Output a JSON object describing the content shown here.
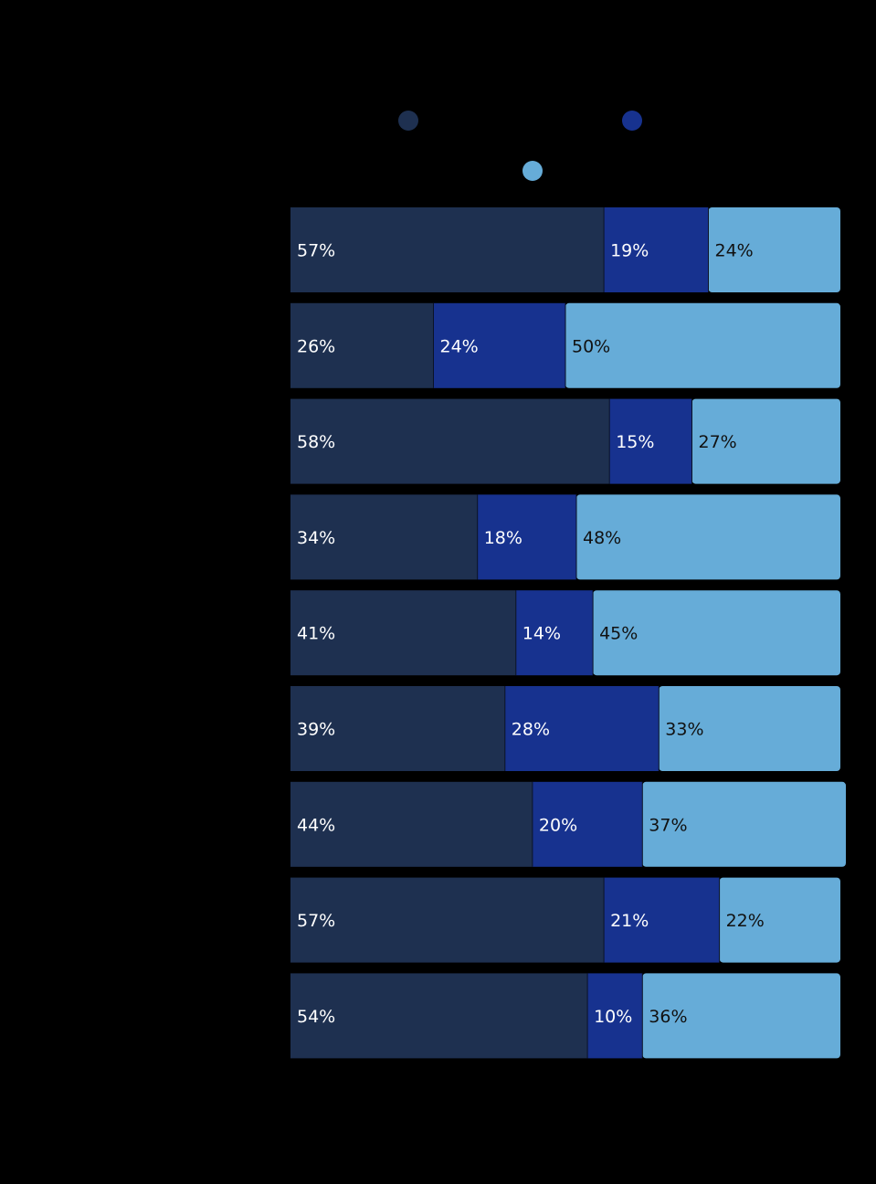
{
  "chart_data": {
    "type": "bar",
    "orientation": "horizontal",
    "stacked": true,
    "normalized_percent": true,
    "categories": [
      "",
      "",
      "",
      "",
      "",
      "",
      "",
      "",
      ""
    ],
    "series": [
      {
        "values": [
          57,
          26,
          58,
          34,
          41,
          39,
          44,
          57,
          54
        ],
        "labels": [
          "57%",
          "26%",
          "58%",
          "34%",
          "41%",
          "39%",
          "44%",
          "57%",
          "54%"
        ],
        "color": "#1e3050",
        "label_color": "#ffffff"
      },
      {
        "values": [
          19,
          24,
          15,
          18,
          14,
          28,
          20,
          21,
          10
        ],
        "labels": [
          "19%",
          "24%",
          "15%",
          "18%",
          "14%",
          "28%",
          "20%",
          "21%",
          "10%"
        ],
        "color": "#17328f",
        "label_color": "#ffffff"
      },
      {
        "values": [
          24,
          50,
          27,
          48,
          45,
          33,
          37,
          22,
          36
        ],
        "labels": [
          "24%",
          "50%",
          "27%",
          "48%",
          "45%",
          "33%",
          "37%",
          "22%",
          "36%"
        ],
        "color": "#66acd8",
        "label_color": "#111111"
      }
    ],
    "legend": {
      "placement": "top",
      "items": [
        {
          "color": "#1e3050"
        },
        {
          "color": "#17328f"
        },
        {
          "color": "#66acd8"
        }
      ]
    },
    "xlim": [
      0,
      100
    ],
    "grid": false,
    "background": "#000000"
  }
}
